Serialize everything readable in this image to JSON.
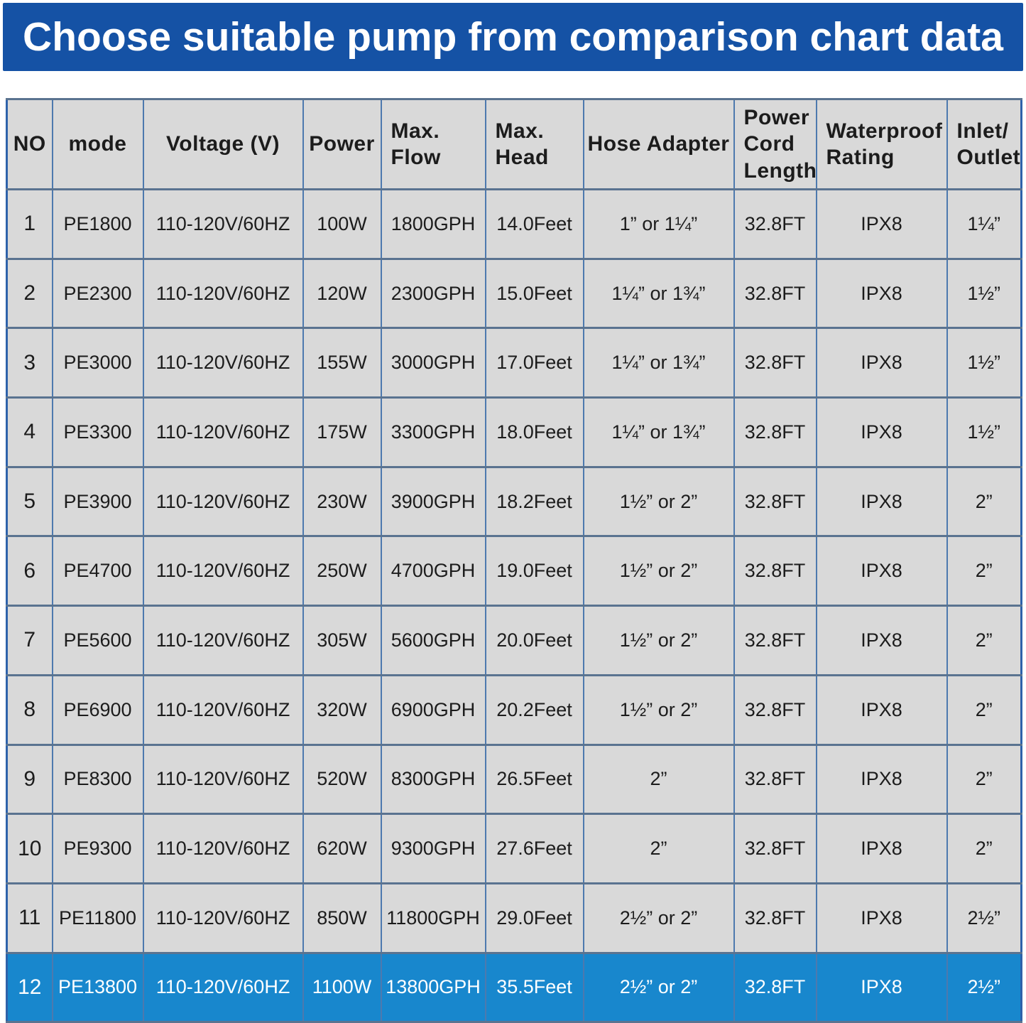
{
  "banner": {
    "title": "Choose suitable pump from comparison chart data"
  },
  "colors": {
    "banner_bg": "#1552a5",
    "highlight_bg": "#1887cd",
    "cell_bg": "#d9d9d9",
    "border_v": "#4d79ae",
    "border_h": "#5a7390",
    "outer_border": "#2e62aa",
    "text_dark": "#1c1c1c",
    "banner_text": "#ffffff",
    "highlight_text": "#ffffff"
  },
  "chart_data": {
    "type": "table",
    "title": "Choose suitable pump from comparison chart data",
    "columns": [
      {
        "key": "no",
        "label": "NO",
        "align": "center"
      },
      {
        "key": "mode",
        "label": "mode",
        "align": "center"
      },
      {
        "key": "voltage",
        "label": "Voltage (V)",
        "align": "center"
      },
      {
        "key": "power",
        "label": "Power",
        "align": "center"
      },
      {
        "key": "max-flow",
        "label": "Max.\nFlow",
        "align": "left"
      },
      {
        "key": "max-head",
        "label": "Max.\nHead",
        "align": "left"
      },
      {
        "key": "hose-adapter",
        "label": "Hose Adapter",
        "align": "center"
      },
      {
        "key": "power-cord-length",
        "label": "Power\nCord\nLength",
        "align": "left"
      },
      {
        "key": "waterproof-rating",
        "label": "Waterproof\nRating",
        "align": "left"
      },
      {
        "key": "inlet-outlet",
        "label": "Inlet/\nOutlet",
        "align": "left"
      }
    ],
    "rows": [
      [
        "1",
        "PE1800",
        "110-120V/60HZ",
        "100W",
        "1800GPH",
        "14.0Feet",
        "1” or 1¼”",
        "32.8FT",
        "IPX8",
        "1¼”"
      ],
      [
        "2",
        "PE2300",
        "110-120V/60HZ",
        "120W",
        "2300GPH",
        "15.0Feet",
        "1¼” or 1¾”",
        "32.8FT",
        "IPX8",
        "1½”"
      ],
      [
        "3",
        "PE3000",
        "110-120V/60HZ",
        "155W",
        "3000GPH",
        "17.0Feet",
        "1¼” or 1¾”",
        "32.8FT",
        "IPX8",
        "1½”"
      ],
      [
        "4",
        "PE3300",
        "110-120V/60HZ",
        "175W",
        "3300GPH",
        "18.0Feet",
        "1¼” or 1¾”",
        "32.8FT",
        "IPX8",
        "1½”"
      ],
      [
        "5",
        "PE3900",
        "110-120V/60HZ",
        "230W",
        "3900GPH",
        "18.2Feet",
        "1½” or 2”",
        "32.8FT",
        "IPX8",
        "2”"
      ],
      [
        "6",
        "PE4700",
        "110-120V/60HZ",
        "250W",
        "4700GPH",
        "19.0Feet",
        "1½” or 2”",
        "32.8FT",
        "IPX8",
        "2”"
      ],
      [
        "7",
        "PE5600",
        "110-120V/60HZ",
        "305W",
        "5600GPH",
        "20.0Feet",
        "1½” or 2”",
        "32.8FT",
        "IPX8",
        "2”"
      ],
      [
        "8",
        "PE6900",
        "110-120V/60HZ",
        "320W",
        "6900GPH",
        "20.2Feet",
        "1½” or 2”",
        "32.8FT",
        "IPX8",
        "2”"
      ],
      [
        "9",
        "PE8300",
        "110-120V/60HZ",
        "520W",
        "8300GPH",
        "26.5Feet",
        "2”",
        "32.8FT",
        "IPX8",
        "2”"
      ],
      [
        "10",
        "PE9300",
        "110-120V/60HZ",
        "620W",
        "9300GPH",
        "27.6Feet",
        "2”",
        "32.8FT",
        "IPX8",
        "2”"
      ],
      [
        "11",
        "PE11800",
        "110-120V/60HZ",
        "850W",
        "11800GPH",
        "29.0Feet",
        "2½” or 2”",
        "32.8FT",
        "IPX8",
        "2½”"
      ],
      [
        "12",
        "PE13800",
        "110-120V/60HZ",
        "1100W",
        "13800GPH",
        "35.5Feet",
        "2½” or 2”",
        "32.8FT",
        "IPX8",
        "2½”"
      ]
    ],
    "highlighted_row_index": 11,
    "layout": {
      "grid": true,
      "header_position": "top"
    }
  }
}
